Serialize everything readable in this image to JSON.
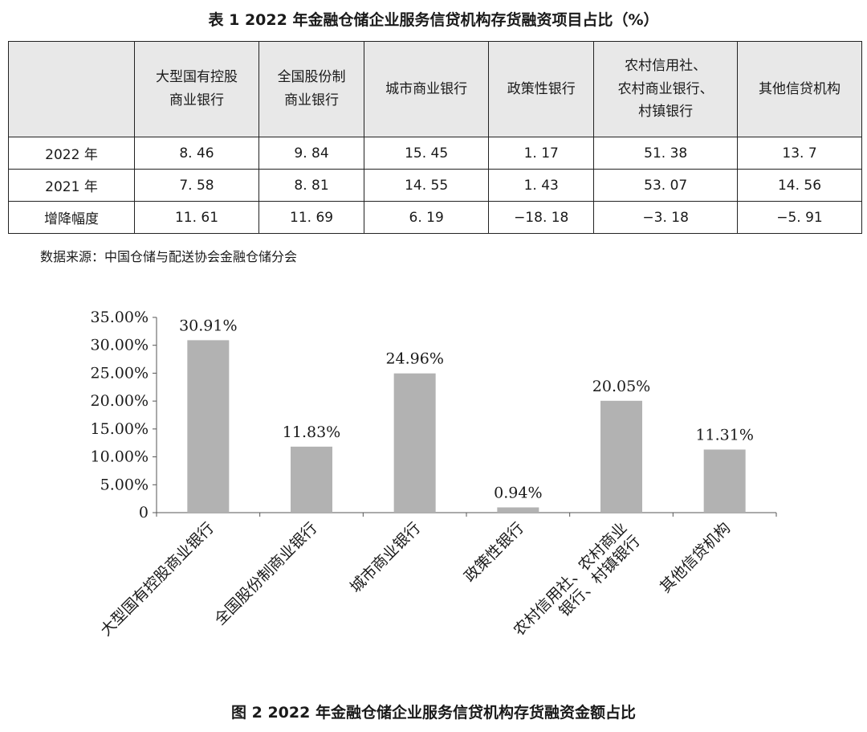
{
  "table": {
    "title": "表 1   2022 年金融仓储企业服务信贷机构存货融资项目占比（%）",
    "header": [
      "",
      "大型国有控股\n商业银行",
      "全国股份制\n商业银行",
      "城市商业银行",
      "政策性银行",
      "农村信用社、\n农村商业银行、\n村镇银行",
      "其他信贷机构"
    ],
    "rows": [
      {
        "label": "2022 年",
        "values": [
          "8. 46",
          "9. 84",
          "15. 45",
          "1. 17",
          "51. 38",
          "13. 7"
        ]
      },
      {
        "label": "2021 年",
        "values": [
          "7. 58",
          "8. 81",
          "14. 55",
          "1. 43",
          "53. 07",
          "14. 56"
        ]
      },
      {
        "label": "增降幅度",
        "values": [
          "11. 61",
          "11. 69",
          "6. 19",
          "−18. 18",
          "−3. 18",
          "−5. 91"
        ]
      }
    ],
    "source": "数据来源：中国仓储与配送协会金融仓储分会"
  },
  "chart_data": {
    "type": "bar",
    "title": "图 2   2022 年金融仓储企业服务信贷机构存货融资金额占比",
    "categories": [
      "大型国有控股商业银行",
      "全国股份制商业银行",
      "城市商业银行",
      "政策性银行",
      "农村信用社、农村商业银行、村镇银行",
      "其他信贷机构"
    ],
    "category_labels": [
      [
        "大型国有控股商业银行"
      ],
      [
        "全国股份制商业银行"
      ],
      [
        "城市商业银行"
      ],
      [
        "政策性银行"
      ],
      [
        "农村信用社、农村商业",
        "银行、村镇银行"
      ],
      [
        "其他信贷机构"
      ]
    ],
    "values": [
      30.91,
      11.83,
      24.96,
      0.94,
      20.05,
      11.31
    ],
    "data_labels": [
      "30.91%",
      "11.83%",
      "24.96%",
      "0.94%",
      "20.05%",
      "11.31%"
    ],
    "ylim": [
      0,
      35
    ],
    "yticks": [
      0,
      5,
      10,
      15,
      20,
      25,
      30,
      35
    ],
    "ytick_labels": [
      "0",
      "5.00%",
      "10.00%",
      "15.00%",
      "20.00%",
      "25.00%",
      "30.00%",
      "35.00%"
    ],
    "bar_color": "#b2b2b2",
    "grid": false,
    "legend": "none"
  }
}
